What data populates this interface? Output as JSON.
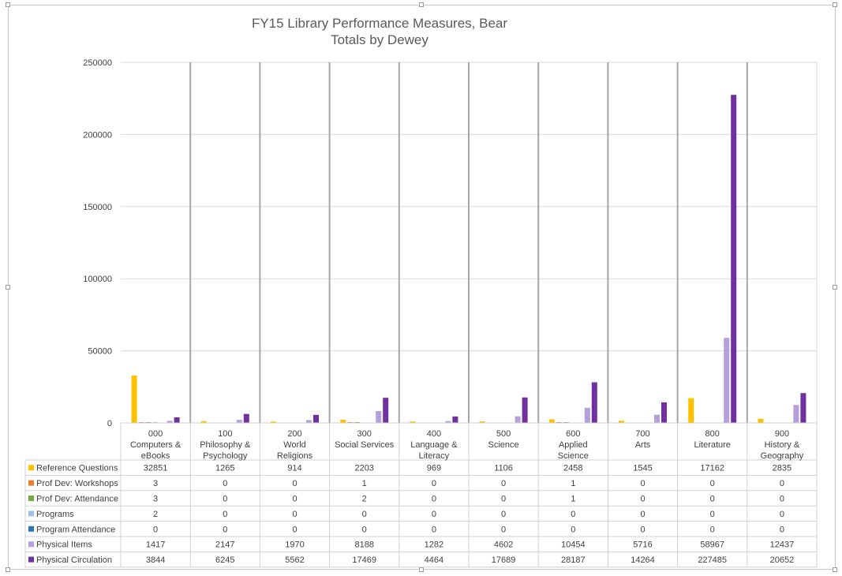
{
  "chart_data": {
    "type": "bar",
    "title": [
      "FY15 Library Performance Measures, Bear",
      "Totals by Dewey"
    ],
    "ylim": [
      0,
      250000
    ],
    "yticks": [
      0,
      50000,
      100000,
      150000,
      200000,
      250000
    ],
    "grid": true,
    "legend": "data table",
    "categories": [
      [
        "000",
        "Computers &",
        "eBooks"
      ],
      [
        "100",
        "Philosophy &",
        "Psychology"
      ],
      [
        "200",
        "World",
        "Religions"
      ],
      [
        "300",
        "Social Services"
      ],
      [
        "400",
        "Language &",
        "Literacy"
      ],
      [
        "500",
        "Science"
      ],
      [
        "600",
        "Applied",
        "Science"
      ],
      [
        "700",
        "Arts"
      ],
      [
        "800",
        "Literature"
      ],
      [
        "900",
        "History &",
        "Geography"
      ]
    ],
    "series": [
      {
        "name": "Reference Questions",
        "color": "#FFC000",
        "values": [
          32851,
          1265,
          914,
          2203,
          969,
          1106,
          2458,
          1545,
          17162,
          2835
        ]
      },
      {
        "name": "Prof Dev: Workshops",
        "color": "#ED7D31",
        "values": [
          3,
          0,
          0,
          1,
          0,
          0,
          1,
          0,
          0,
          0
        ]
      },
      {
        "name": "Prof Dev: Attendance",
        "color": "#70AD47",
        "values": [
          3,
          0,
          0,
          2,
          0,
          0,
          1,
          0,
          0,
          0
        ]
      },
      {
        "name": "Programs",
        "color": "#9DC3E6",
        "values": [
          2,
          0,
          0,
          0,
          0,
          0,
          0,
          0,
          0,
          0
        ]
      },
      {
        "name": "Program Attendance",
        "color": "#2E75B6",
        "values": [
          0,
          0,
          0,
          0,
          0,
          0,
          0,
          0,
          0,
          0
        ]
      },
      {
        "name": "Physical Items",
        "color": "#B4A0DC",
        "values": [
          1417,
          2147,
          1970,
          8188,
          1282,
          4602,
          10454,
          5716,
          58967,
          12437
        ]
      },
      {
        "name": "Physical Circulation",
        "color": "#7030A0",
        "values": [
          3844,
          6245,
          5562,
          17469,
          4464,
          17689,
          28187,
          14264,
          227485,
          20652
        ]
      }
    ]
  }
}
